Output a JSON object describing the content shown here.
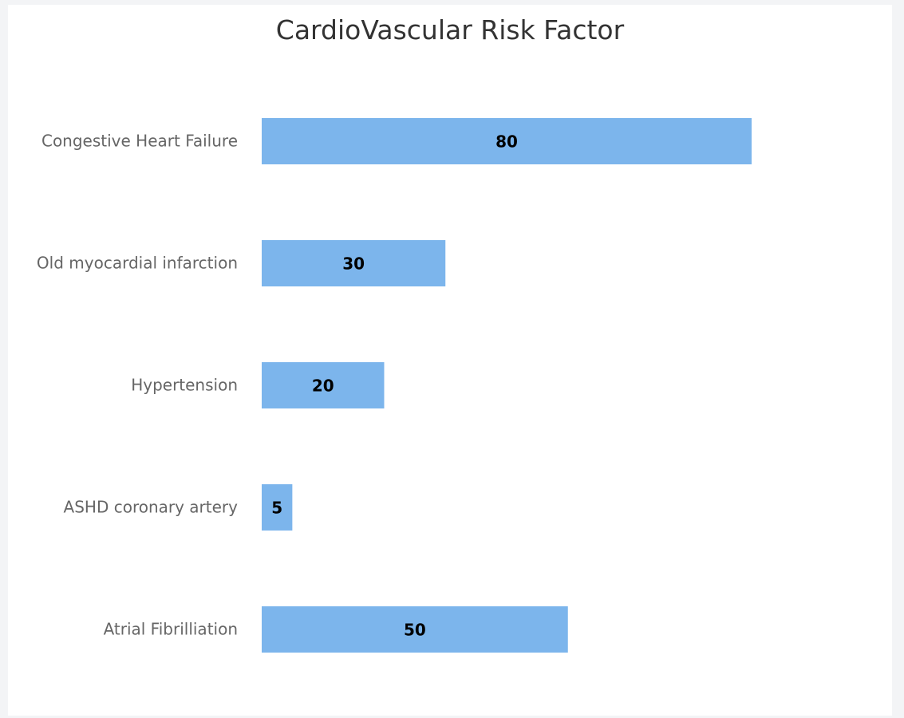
{
  "chart_data": {
    "type": "bar",
    "orientation": "horizontal",
    "title": "CardioVascular Risk Factor",
    "categories": [
      "Congestive Heart Failure",
      "Old myocardial infarction",
      "Hypertension",
      "ASHD coronary artery",
      "Atrial Fibrilliation"
    ],
    "values": [
      80,
      30,
      20,
      5,
      50
    ],
    "xlim": [
      0,
      100
    ],
    "grid": false,
    "legend": "none",
    "data_labels": true,
    "bar_color": "#7cb5ec"
  }
}
